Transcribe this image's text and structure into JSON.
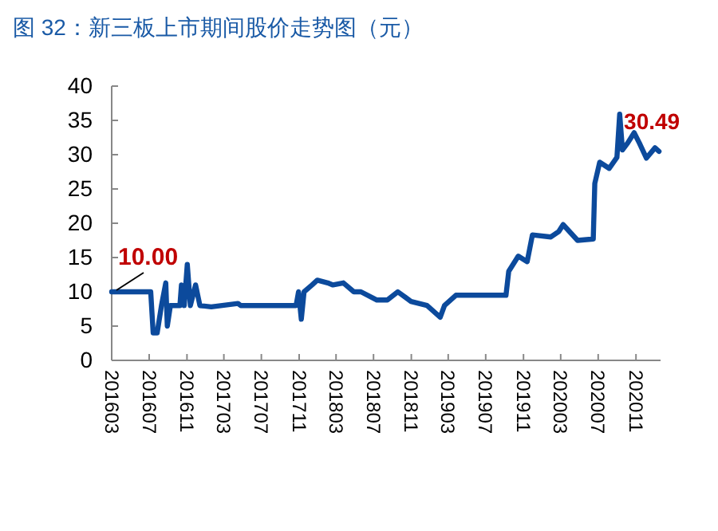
{
  "chart_data": {
    "type": "line",
    "title": "图 32：新三板上市期间股价走势图（元）",
    "x": [
      "2016-03-01",
      "2016-07-06",
      "2016-07-14",
      "2016-07-27",
      "2016-08-10",
      "2016-08-24",
      "2016-08-29",
      "2016-09-08",
      "2016-10-09",
      "2016-10-14",
      "2016-10-23",
      "2016-11-02",
      "2016-11-12",
      "2016-11-29",
      "2016-12-13",
      "2017-01-19",
      "2017-04-16",
      "2017-04-25",
      "2017-10-22",
      "2017-10-30",
      "2017-11-08",
      "2017-11-17",
      "2017-12-13",
      "2017-12-30",
      "2018-02-02",
      "2018-02-19",
      "2018-03-25",
      "2018-04-28",
      "2018-05-21",
      "2018-07-12",
      "2018-08-15",
      "2018-09-18",
      "2018-10-31",
      "2018-12-22",
      "2019-02-03",
      "2019-02-17",
      "2019-03-26",
      "2019-09-05",
      "2019-09-14",
      "2019-10-15",
      "2019-11-13",
      "2019-11-30",
      "2020-01-29",
      "2020-02-24",
      "2020-03-09",
      "2020-04-25",
      "2020-06-15",
      "2020-06-20",
      "2020-07-06",
      "2020-08-06",
      "2020-08-31",
      "2020-09-09",
      "2020-09-18",
      "2020-10-05",
      "2020-10-26",
      "2020-11-12",
      "2020-12-05",
      "2021-01-02",
      "2021-01-15"
    ],
    "series": [
      {
        "color": "#0c4a9c",
        "values": [
          10,
          10,
          4,
          4,
          8,
          11.3,
          5,
          8,
          8,
          11,
          8,
          14,
          8,
          11,
          8,
          7.8,
          8.3,
          8,
          8,
          10,
          6,
          10,
          11,
          11.7,
          11.3,
          11,
          11.3,
          10,
          10,
          8.8,
          8.8,
          10,
          8.6,
          8,
          6.3,
          8,
          9.5,
          9.5,
          13,
          15.2,
          14.4,
          18.3,
          18,
          18.8,
          19.8,
          17.5,
          17.7,
          25.8,
          28.9,
          28,
          29.6,
          35.9,
          30.7,
          31.7,
          33.2,
          31.7,
          29.5,
          31,
          30.49
        ]
      }
    ],
    "xlim": [
      "2016-03-01",
      "2021-01-20"
    ],
    "xticks": [
      {
        "value": "2016-03",
        "label": "201603"
      },
      {
        "value": "2016-07",
        "label": "201607"
      },
      {
        "value": "2016-11",
        "label": "201611"
      },
      {
        "value": "2017-03",
        "label": "201703"
      },
      {
        "value": "2017-07",
        "label": "201707"
      },
      {
        "value": "2017-11",
        "label": "201711"
      },
      {
        "value": "2018-03",
        "label": "201803"
      },
      {
        "value": "2018-07",
        "label": "201807"
      },
      {
        "value": "2018-11",
        "label": "201811"
      },
      {
        "value": "2019-03",
        "label": "201903"
      },
      {
        "value": "2019-07",
        "label": "201907"
      },
      {
        "value": "2019-11",
        "label": "201911"
      },
      {
        "value": "2020-03",
        "label": "202003"
      },
      {
        "value": "2020-07",
        "label": "202007"
      },
      {
        "value": "2020-11",
        "label": "202011"
      }
    ],
    "ylim": [
      0,
      40
    ],
    "yticks": [
      0,
      5,
      10,
      15,
      20,
      25,
      30,
      35,
      40
    ],
    "annotations": [
      {
        "text": "10.00",
        "x": "2016-03-01",
        "y": 10
      },
      {
        "text": "30.49",
        "x": "2021-01-15",
        "y": 30.49
      }
    ],
    "grid": false,
    "marker": "none",
    "line_style": "solid"
  }
}
